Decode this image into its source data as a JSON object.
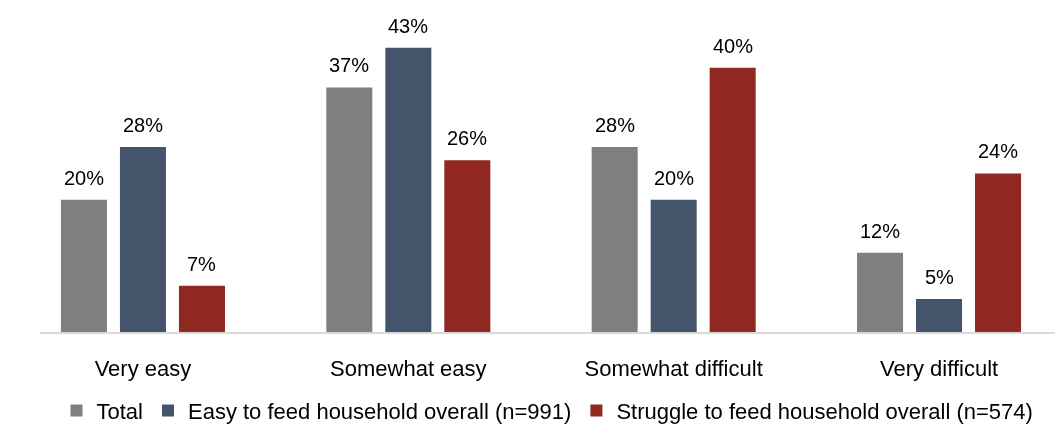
{
  "chart_data": {
    "type": "bar",
    "categories": [
      "Very easy",
      "Somewhat easy",
      "Somewhat difficult",
      "Very difficult"
    ],
    "series": [
      {
        "name": "Total",
        "color": "#7f7f7f",
        "values": [
          20,
          37,
          28,
          12
        ],
        "value_labels": [
          "20%",
          "37%",
          "28%",
          "12%"
        ]
      },
      {
        "name": "Easy to feed household overall (n=991)",
        "color": "#44546a",
        "values": [
          28,
          43,
          20,
          5
        ],
        "value_labels": [
          "28%",
          "43%",
          "20%",
          "5%"
        ]
      },
      {
        "name": "Struggle to feed household overall (n=574)",
        "color": "#922822",
        "values": [
          7,
          26,
          40,
          24
        ],
        "value_labels": [
          "7%",
          "26%",
          "40%",
          "24%"
        ]
      }
    ],
    "legend": "bottom"
  }
}
